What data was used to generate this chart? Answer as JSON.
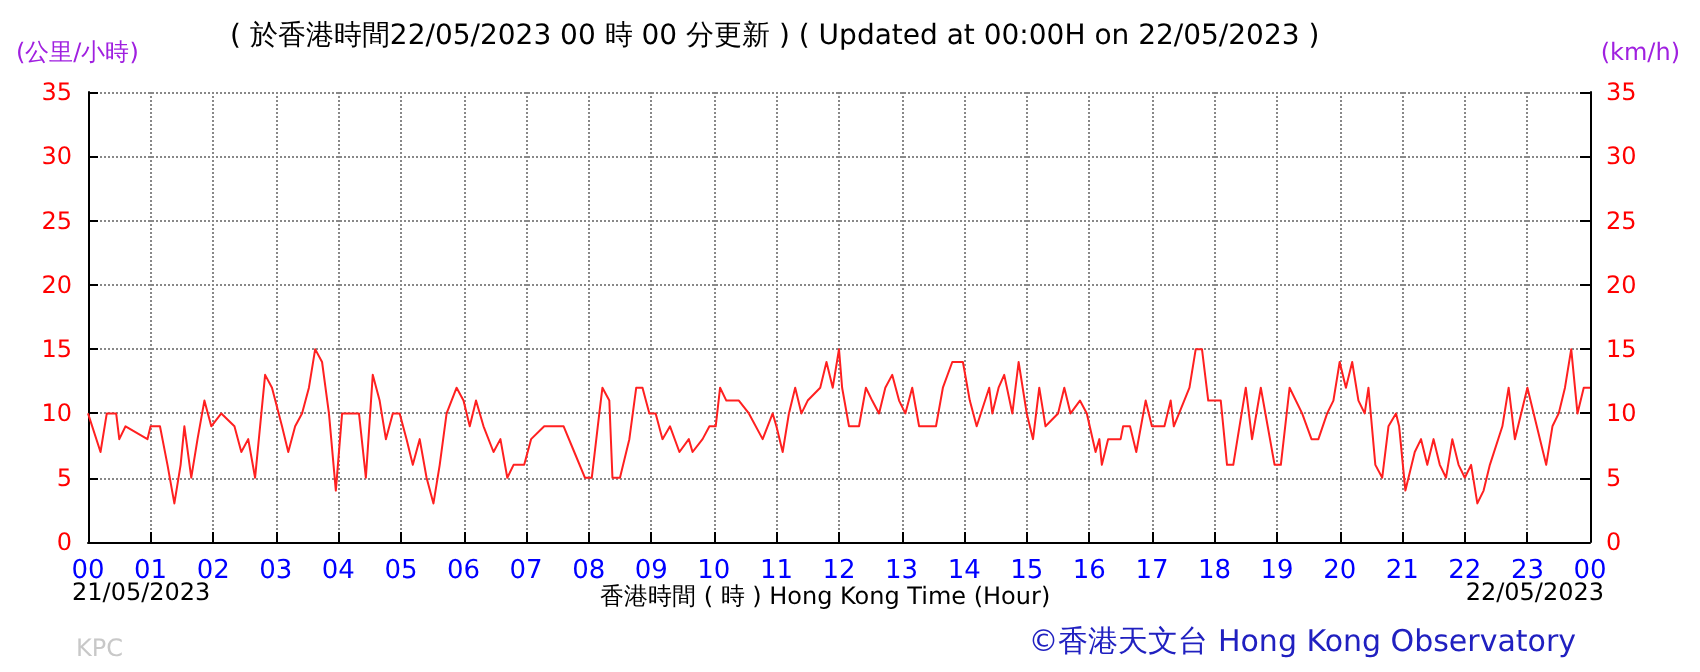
{
  "chart_data": {
    "type": "line",
    "title": "( 於香港時間22/05/2023 00 時 00 分更新 ) ( Updated at 00:00H on 22/05/2023 )",
    "xlabel": "香港時間 ( 時 ) Hong Kong Time (Hour)",
    "ylabel": "(公里/小時)",
    "y2label": "(km/h)",
    "annotations": [
      "21/05/2023",
      "22/05/2023",
      "KPC",
      "©香港天文台 Hong Kong Observatory"
    ],
    "series": [
      {
        "color": "#ff2020",
        "x": [
          0,
          0.2,
          0.3,
          0.45,
          0.5,
          0.6,
          0.95,
          1.0,
          1.15,
          1.27,
          1.38,
          1.48,
          1.54,
          1.65,
          1.75,
          1.86,
          1.97,
          2.13,
          2.34,
          2.45,
          2.56,
          2.67,
          2.77,
          2.83,
          2.94,
          3.1,
          3.2,
          3.31,
          3.42,
          3.53,
          3.63,
          3.74,
          3.85,
          3.96,
          4.06,
          4.17,
          4.33,
          4.44,
          4.55,
          4.66,
          4.76,
          4.87,
          4.98,
          5.09,
          5.19,
          5.3,
          5.41,
          5.52,
          5.62,
          5.73,
          5.89,
          6.0,
          6.1,
          6.2,
          6.32,
          6.48,
          6.59,
          6.7,
          6.8,
          6.97,
          7.08,
          7.29,
          7.6,
          7.77,
          7.94,
          8.05,
          8.17,
          8.22,
          8.33,
          8.38,
          8.5,
          8.65,
          8.76,
          8.86,
          8.97,
          9.07,
          9.18,
          9.3,
          9.45,
          9.6,
          9.66,
          9.82,
          9.93,
          10.03,
          10.1,
          10.2,
          10.4,
          10.56,
          10.78,
          10.94,
          11.0,
          11.1,
          11.2,
          11.3,
          11.4,
          11.5,
          11.7,
          11.8,
          11.9,
          12.0,
          12.05,
          12.16,
          12.32,
          12.43,
          12.53,
          12.64,
          12.74,
          12.85,
          12.96,
          13.06,
          13.17,
          13.28,
          13.55,
          13.66,
          13.81,
          13.98,
          14.09,
          14.2,
          14.4,
          14.45,
          14.55,
          14.64,
          14.77,
          14.87,
          15.0,
          15.1,
          15.2,
          15.3,
          15.5,
          15.6,
          15.7,
          15.85,
          15.96,
          16.1,
          16.16,
          16.2,
          16.3,
          16.5,
          16.54,
          16.65,
          16.75,
          16.9,
          17.0,
          17.2,
          17.3,
          17.35,
          17.6,
          17.7,
          17.8,
          17.9,
          18.1,
          18.2,
          18.3,
          18.5,
          18.6,
          18.74,
          18.85,
          18.96,
          19.06,
          19.2,
          19.4,
          19.55,
          19.66,
          19.8,
          19.9,
          20.0,
          20.1,
          20.2,
          20.3,
          20.4,
          20.46,
          20.57,
          20.68,
          20.78,
          20.9,
          20.95,
          21.05,
          21.2,
          21.3,
          21.4,
          21.5,
          21.6,
          21.7,
          21.8,
          21.9,
          22.0,
          22.1,
          22.2,
          22.3,
          22.4,
          22.6,
          22.7,
          22.8,
          23.0,
          23.1,
          23.3,
          23.4,
          23.5,
          23.6,
          23.7,
          23.8,
          23.9,
          24
        ],
        "values": [
          10,
          7,
          10,
          10,
          8,
          9,
          8,
          9,
          9,
          6,
          3,
          6,
          9,
          5,
          8,
          11,
          9,
          10,
          9,
          7,
          8,
          5,
          10,
          13,
          12,
          9,
          7,
          9,
          10,
          12,
          15,
          14,
          10,
          4,
          10,
          10,
          10,
          5,
          13,
          11,
          8,
          10,
          10,
          8,
          6,
          8,
          5,
          3,
          6,
          10,
          12,
          11,
          9,
          11,
          9,
          7,
          8,
          5,
          6,
          6,
          8,
          9,
          9,
          7,
          5,
          5,
          10,
          12,
          11,
          5,
          5,
          8,
          12,
          12,
          10,
          10,
          8,
          9,
          7,
          8,
          7,
          8,
          9,
          9,
          12,
          11,
          11,
          10,
          8,
          10,
          9,
          7,
          10,
          12,
          10,
          11,
          12,
          14,
          12,
          15,
          12,
          9,
          9,
          12,
          11,
          10,
          12,
          13,
          11,
          10,
          12,
          9,
          9,
          12,
          14,
          14,
          11,
          9,
          12,
          10,
          12,
          13,
          10,
          14,
          10,
          8,
          12,
          9,
          10,
          12,
          10,
          11,
          10,
          7,
          8,
          6,
          8,
          8,
          9,
          9,
          7,
          11,
          9,
          9,
          11,
          9,
          12,
          15,
          15,
          11,
          11,
          6,
          6,
          12,
          8,
          12,
          9,
          6,
          6,
          12,
          10,
          8,
          8,
          10,
          11,
          14,
          12,
          14,
          11,
          10,
          12,
          6,
          5,
          9,
          10,
          9,
          4,
          7,
          8,
          6,
          8,
          6,
          5,
          8,
          6,
          5,
          6,
          3,
          4,
          6,
          9,
          12,
          8,
          12,
          10,
          6,
          9,
          10,
          12,
          15,
          10,
          12,
          12
        ]
      }
    ],
    "xlim": [
      0,
      24
    ],
    "xticks": [
      {
        "value": 0,
        "label": "00"
      },
      {
        "value": 1,
        "label": "01"
      },
      {
        "value": 2,
        "label": "02"
      },
      {
        "value": 3,
        "label": "03"
      },
      {
        "value": 4,
        "label": "04"
      },
      {
        "value": 5,
        "label": "05"
      },
      {
        "value": 6,
        "label": "06"
      },
      {
        "value": 7,
        "label": "07"
      },
      {
        "value": 8,
        "label": "08"
      },
      {
        "value": 9,
        "label": "09"
      },
      {
        "value": 10,
        "label": "10"
      },
      {
        "value": 11,
        "label": "11"
      },
      {
        "value": 12,
        "label": "12"
      },
      {
        "value": 13,
        "label": "13"
      },
      {
        "value": 14,
        "label": "14"
      },
      {
        "value": 15,
        "label": "15"
      },
      {
        "value": 16,
        "label": "16"
      },
      {
        "value": 17,
        "label": "17"
      },
      {
        "value": 18,
        "label": "18"
      },
      {
        "value": 19,
        "label": "19"
      },
      {
        "value": 20,
        "label": "20"
      },
      {
        "value": 21,
        "label": "21"
      },
      {
        "value": 22,
        "label": "22"
      },
      {
        "value": 23,
        "label": "23"
      },
      {
        "value": 24,
        "label": "00"
      }
    ],
    "ylim": [
      0,
      35
    ],
    "yticks": [
      0,
      5,
      10,
      15,
      20,
      25,
      30,
      35
    ],
    "y2lim": [
      0,
      35
    ],
    "y2ticks": [
      0,
      5,
      10,
      15,
      20,
      25,
      30,
      35
    ],
    "grid": true,
    "marker": "none",
    "line_style": "solid"
  }
}
